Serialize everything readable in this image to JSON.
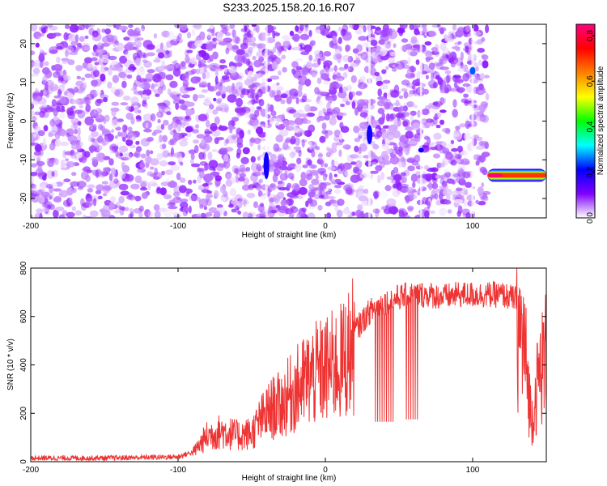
{
  "chart_data": [
    {
      "type": "heatmap",
      "title": "S233.2025.158.20.16.R07",
      "xlabel": "Height of straight line (km)",
      "ylabel": "Frequency (Hz)",
      "xlim": [
        -200,
        150
      ],
      "ylim": [
        -25,
        25
      ],
      "x_ticks": [
        -200,
        -100,
        0,
        100
      ],
      "y_ticks": [
        -20,
        -10,
        0,
        10,
        20
      ],
      "colorbar": {
        "label": "Normalized spectral amplitude",
        "range": [
          0.0,
          0.85
        ],
        "ticks": [
          0.0,
          0.2,
          0.4,
          0.6,
          0.8
        ],
        "colormap": [
          "#ffffff",
          "#8000ff",
          "#0000ff",
          "#00ffff",
          "#00ff00",
          "#ffff00",
          "#ff8000",
          "#ff0000",
          "#ff0080"
        ]
      },
      "data_extent_x": [
        -200,
        110
      ],
      "features": [
        {
          "x": -40,
          "y_from": -15,
          "y_to": -8,
          "amplitude": 0.2
        },
        {
          "x": 30,
          "y_from": -6,
          "y_to": -1,
          "amplitude": 0.2
        },
        {
          "x": 100,
          "y_from": 12,
          "y_to": 14,
          "amplitude": 0.25
        },
        {
          "x": 65,
          "y_from": -8,
          "y_to": -7,
          "amplitude": 0.2
        },
        {
          "x_from": 110,
          "x_to": 150,
          "y": -14,
          "amplitude": 0.85
        }
      ],
      "background_amplitude": [
        0.0,
        0.1
      ]
    },
    {
      "type": "line",
      "xlabel": "Height of straight line (km)",
      "ylabel": "SNR (10 * v/v)",
      "xlim": [
        -200,
        150
      ],
      "ylim": [
        0,
        800
      ],
      "x_ticks": [
        -200,
        -100,
        0,
        100
      ],
      "y_ticks": [
        0,
        200,
        400,
        600,
        800
      ],
      "series": [
        {
          "color": "#ee3333",
          "x": [
            -200,
            -150,
            -100,
            -90,
            -80,
            -70,
            -60,
            -50,
            -45,
            -40,
            -35,
            -30,
            -25,
            -20,
            -10,
            0,
            10,
            20,
            30,
            40,
            50,
            60,
            70,
            80,
            90,
            100,
            110,
            120,
            130,
            135,
            140,
            145,
            150
          ],
          "values": [
            15,
            15,
            20,
            40,
            120,
            140,
            120,
            130,
            180,
            220,
            250,
            260,
            300,
            330,
            390,
            420,
            450,
            540,
            620,
            660,
            680,
            690,
            690,
            680,
            690,
            690,
            690,
            690,
            670,
            560,
            200,
            420,
            520
          ],
          "dips": [
            {
              "x_from": 33,
              "x_to": 47,
              "to": 165
            },
            {
              "x_from": 54,
              "x_to": 63,
              "to": 175
            }
          ]
        }
      ]
    }
  ]
}
